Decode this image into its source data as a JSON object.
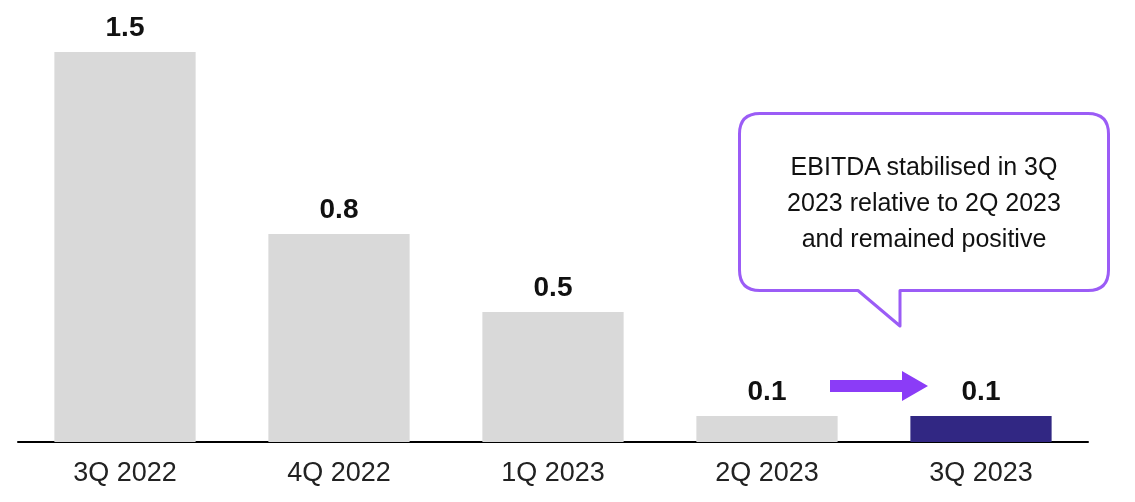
{
  "chart_data": {
    "type": "bar",
    "categories": [
      "3Q 2022",
      "4Q 2022",
      "1Q 2023",
      "2Q 2023",
      "3Q 2023"
    ],
    "values": [
      1.5,
      0.8,
      0.5,
      0.1,
      0.1
    ],
    "colors": [
      "#d9d9d9",
      "#d9d9d9",
      "#d9d9d9",
      "#d9d9d9",
      "#312783"
    ],
    "data_labels": true,
    "annotations": [
      "EBITDA stabilised in 3Q 2023 relative to 2Q 2023 and remained positive"
    ]
  }
}
